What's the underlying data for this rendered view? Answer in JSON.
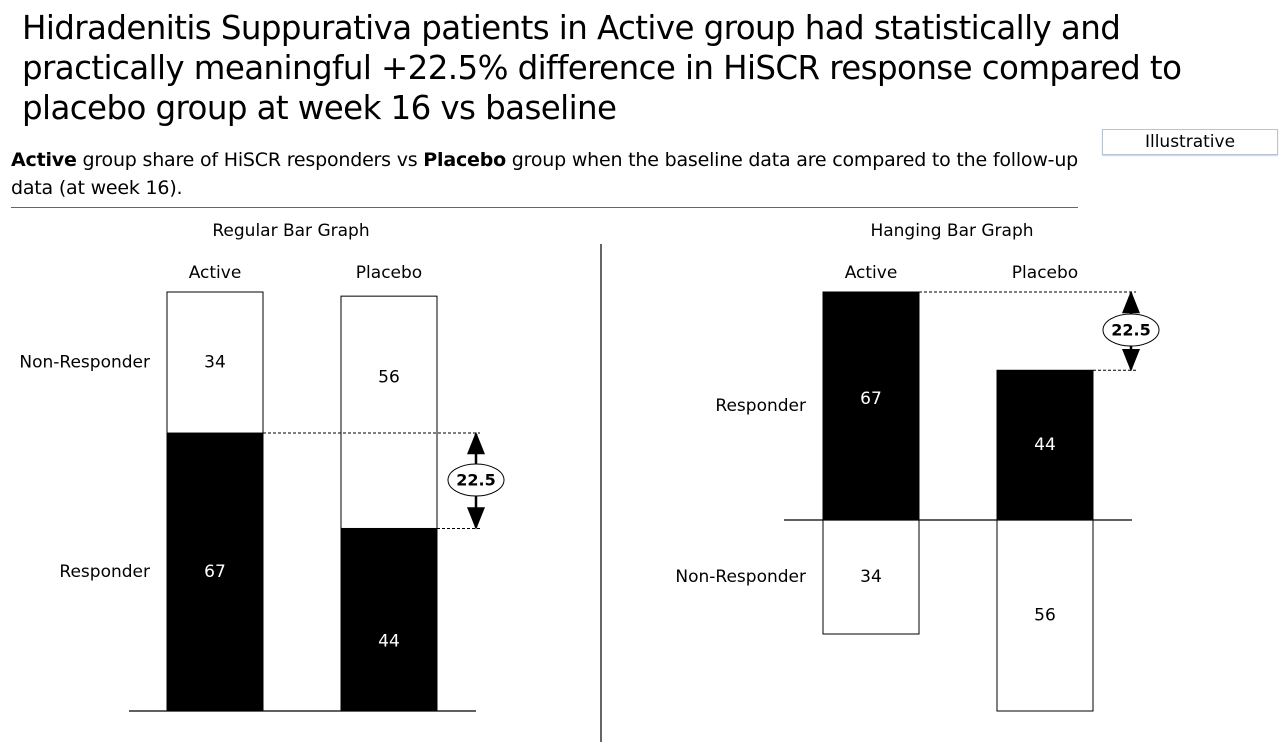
{
  "header": {
    "title": "Hidradenitis Suppurativa patients in Active group had statistically and practically meaningful +22.5% difference in HiSCR response compared to placebo group at week 16 vs baseline",
    "badge": "Illustrative",
    "subtitle_strong_1": "Active",
    "subtitle_text_1": " group share of HiSCR responders vs ",
    "subtitle_strong_2": "Placebo",
    "subtitle_text_2": " group when the baseline data are compared to the follow-up data (at week 16)."
  },
  "chart_data": [
    {
      "type": "bar",
      "subtype": "stacked",
      "title": "Regular Bar Graph",
      "categories": [
        "Active",
        "Placebo"
      ],
      "series": [
        {
          "name": "Responder",
          "values": [
            67,
            44
          ],
          "color": "#000000",
          "label_color": "#ffffff"
        },
        {
          "name": "Non-Responder",
          "values": [
            34,
            56
          ],
          "color": "#ffffff",
          "label_color": "#000000"
        }
      ],
      "difference": 22.5,
      "ylim": [
        0,
        101
      ]
    },
    {
      "type": "bar",
      "subtype": "hanging",
      "title": "Hanging Bar Graph",
      "categories": [
        "Active",
        "Placebo"
      ],
      "series": [
        {
          "name": "Responder",
          "values": [
            67,
            44
          ],
          "color": "#000000",
          "label_color": "#ffffff"
        },
        {
          "name": "Non-Responder",
          "values": [
            34,
            56
          ],
          "color": "#ffffff",
          "label_color": "#000000"
        }
      ],
      "difference": 22.5,
      "ylim": [
        -56,
        67
      ]
    }
  ]
}
